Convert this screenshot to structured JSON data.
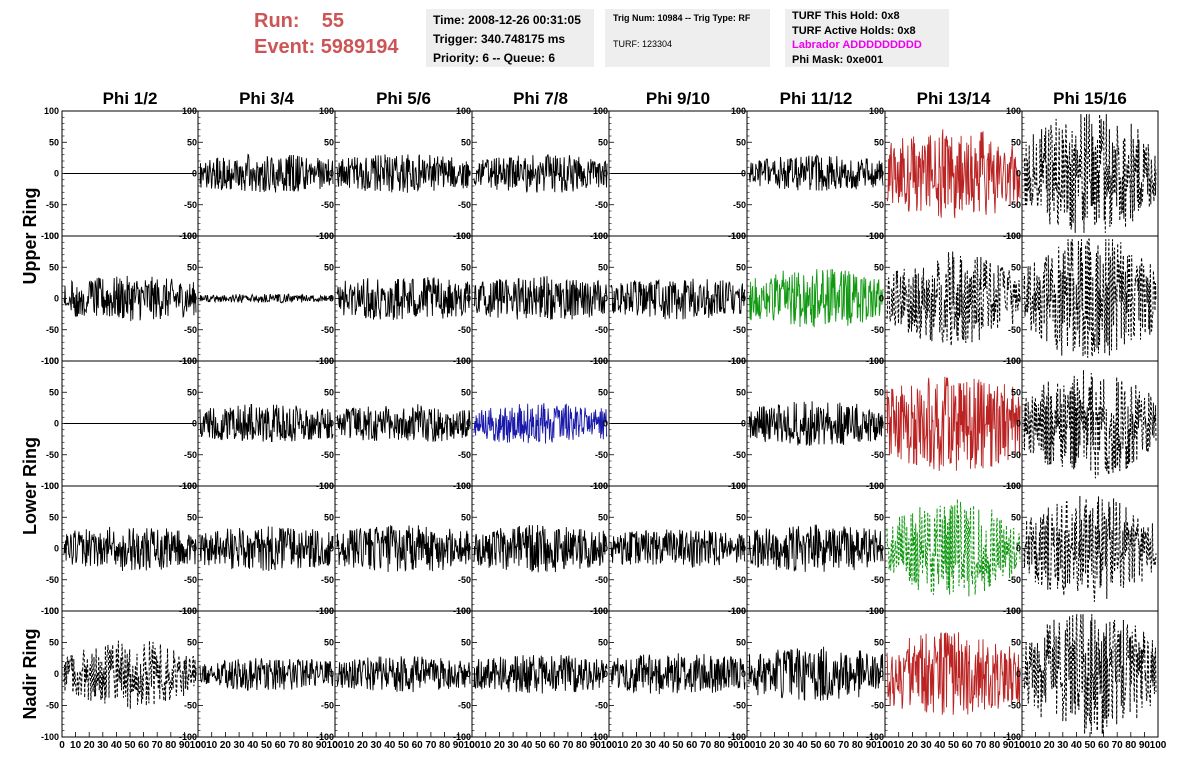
{
  "header": {
    "run_label": "Run:",
    "run_value": "55",
    "event_label": "Event:",
    "event_value": "5989194",
    "run_color": "#cc5555"
  },
  "info_box_1": {
    "time": "Time: 2008-12-26 00:31:05",
    "trigger": "Trigger: 340.748175 ms",
    "priority": "Priority: 6 -- Queue: 6"
  },
  "info_box_2": {
    "trig": "Trig Num: 10984 -- Trig Type: RF",
    "turf": "TURF: 123304"
  },
  "info_box_3": {
    "hold": "TURF This Hold: 0x8",
    "active": "TURF Active Holds: 0x8",
    "labrador": "Labrador ADDDDDDDDD",
    "phi_mask": "Phi Mask: 0xe001",
    "labrador_color": "#ee00ee"
  },
  "chart_data": {
    "type": "line",
    "columns": [
      "Phi 1/2",
      "Phi 3/4",
      "Phi 5/6",
      "Phi 7/8",
      "Phi 9/10",
      "Phi 11/12",
      "Phi 13/14",
      "Phi 15/16"
    ],
    "ring_labels": [
      "Upper Ring",
      "Lower Ring",
      "Nadir Ring"
    ],
    "ylim": [
      -100,
      100
    ],
    "y_ticks": [
      "100",
      "50",
      "0",
      "-50",
      "-100"
    ],
    "xlim": [
      0,
      100
    ],
    "x_tick_labels": [
      "0",
      "10",
      "20",
      "30",
      "40",
      "50",
      "60",
      "70",
      "80",
      "90",
      "100"
    ],
    "colors": {
      "black": "#000000",
      "red": "#bb2222",
      "green": "#119911",
      "blue": "#1a1aaa"
    },
    "panels": [
      {
        "row": 0,
        "col": 0,
        "amp": 0,
        "color": "black",
        "dashed": false
      },
      {
        "row": 0,
        "col": 1,
        "amp": 13,
        "color": "black",
        "dashed": false
      },
      {
        "row": 0,
        "col": 2,
        "amp": 13,
        "color": "black",
        "dashed": false
      },
      {
        "row": 0,
        "col": 3,
        "amp": 13,
        "color": "black",
        "dashed": false
      },
      {
        "row": 0,
        "col": 4,
        "amp": 0,
        "color": "black",
        "dashed": false
      },
      {
        "row": 0,
        "col": 5,
        "amp": 12,
        "color": "black",
        "dashed": false
      },
      {
        "row": 0,
        "col": 6,
        "amp": 30,
        "color": "red",
        "dashed": false
      },
      {
        "row": 0,
        "col": 7,
        "amp": 42,
        "color": "black",
        "dashed": true
      },
      {
        "row": 1,
        "col": 0,
        "amp": 15,
        "color": "black",
        "dashed": false
      },
      {
        "row": 1,
        "col": 1,
        "amp": 3,
        "color": "black",
        "dashed": false
      },
      {
        "row": 1,
        "col": 2,
        "amp": 15,
        "color": "black",
        "dashed": false
      },
      {
        "row": 1,
        "col": 3,
        "amp": 15,
        "color": "black",
        "dashed": false
      },
      {
        "row": 1,
        "col": 4,
        "amp": 14,
        "color": "black",
        "dashed": false
      },
      {
        "row": 1,
        "col": 5,
        "amp": 20,
        "color": "green",
        "dashed": false
      },
      {
        "row": 1,
        "col": 6,
        "amp": 30,
        "color": "black",
        "dashed": true
      },
      {
        "row": 1,
        "col": 7,
        "amp": 42,
        "color": "black",
        "dashed": true
      },
      {
        "row": 2,
        "col": 0,
        "amp": 0,
        "color": "black",
        "dashed": false
      },
      {
        "row": 2,
        "col": 1,
        "amp": 13,
        "color": "black",
        "dashed": false
      },
      {
        "row": 2,
        "col": 2,
        "amp": 13,
        "color": "black",
        "dashed": false
      },
      {
        "row": 2,
        "col": 3,
        "amp": 14,
        "color": "blue",
        "dashed": false
      },
      {
        "row": 2,
        "col": 4,
        "amp": 0,
        "color": "black",
        "dashed": false
      },
      {
        "row": 2,
        "col": 5,
        "amp": 15,
        "color": "black",
        "dashed": false
      },
      {
        "row": 2,
        "col": 6,
        "amp": 32,
        "color": "red",
        "dashed": false
      },
      {
        "row": 2,
        "col": 7,
        "amp": 35,
        "color": "black",
        "dashed": true
      },
      {
        "row": 3,
        "col": 0,
        "amp": 15,
        "color": "black",
        "dashed": false
      },
      {
        "row": 3,
        "col": 1,
        "amp": 15,
        "color": "black",
        "dashed": false
      },
      {
        "row": 3,
        "col": 2,
        "amp": 16,
        "color": "black",
        "dashed": false
      },
      {
        "row": 3,
        "col": 3,
        "amp": 16,
        "color": "black",
        "dashed": false
      },
      {
        "row": 3,
        "col": 4,
        "amp": 13,
        "color": "black",
        "dashed": false
      },
      {
        "row": 3,
        "col": 5,
        "amp": 16,
        "color": "black",
        "dashed": false
      },
      {
        "row": 3,
        "col": 6,
        "amp": 32,
        "color": "green",
        "dashed": true
      },
      {
        "row": 3,
        "col": 7,
        "amp": 35,
        "color": "black",
        "dashed": true
      },
      {
        "row": 4,
        "col": 0,
        "amp": 22,
        "color": "black",
        "dashed": true
      },
      {
        "row": 4,
        "col": 1,
        "amp": 11,
        "color": "black",
        "dashed": false
      },
      {
        "row": 4,
        "col": 2,
        "amp": 12,
        "color": "black",
        "dashed": false
      },
      {
        "row": 4,
        "col": 3,
        "amp": 13,
        "color": "black",
        "dashed": false
      },
      {
        "row": 4,
        "col": 4,
        "amp": 14,
        "color": "black",
        "dashed": false
      },
      {
        "row": 4,
        "col": 5,
        "amp": 18,
        "color": "black",
        "dashed": false
      },
      {
        "row": 4,
        "col": 6,
        "amp": 28,
        "color": "red",
        "dashed": false
      },
      {
        "row": 4,
        "col": 7,
        "amp": 42,
        "color": "black",
        "dashed": true
      }
    ]
  }
}
